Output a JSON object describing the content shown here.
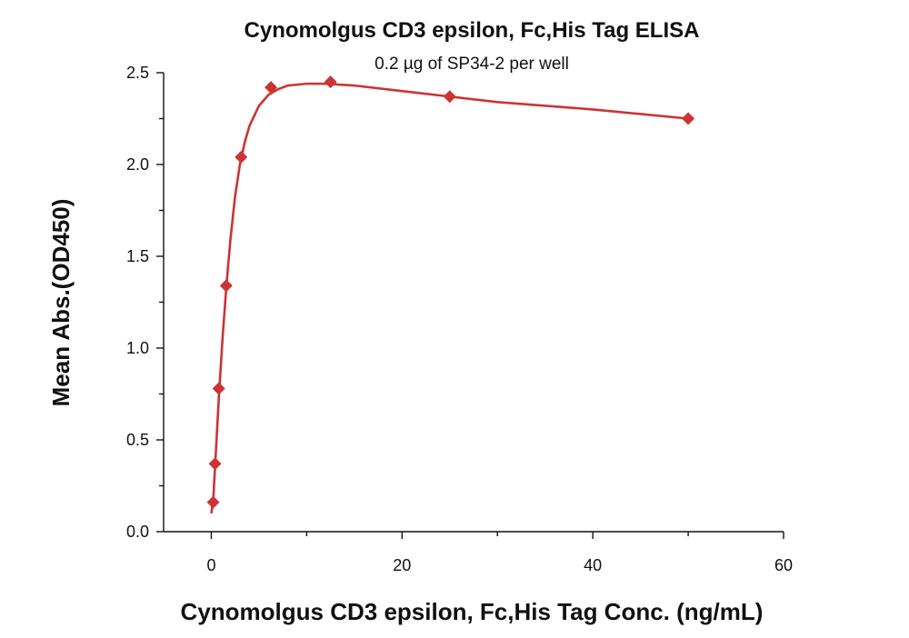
{
  "chart_data": {
    "type": "scatter",
    "title": "Cynomolgus CD3 epsilon, Fc,His Tag ELISA",
    "subtitle": "0.2 µg of SP34-2 per well",
    "xlabel": "Cynomolgus CD3 epsilon, Fc,His Tag Conc. (ng/mL)",
    "ylabel": "Mean Abs.(OD450)",
    "xlim": [
      -5,
      60
    ],
    "ylim": [
      0,
      2.5
    ],
    "x_ticks": [
      0,
      20,
      40,
      60
    ],
    "x_tick_labels": [
      "0",
      "20",
      "40",
      "60"
    ],
    "y_ticks": [
      0,
      0.5,
      1.0,
      1.5,
      2.0,
      2.5
    ],
    "y_tick_labels": [
      "0.0",
      "0.5",
      "1.0",
      "1.5",
      "2.0",
      "2.5"
    ],
    "grid": false,
    "color": "#cc3333",
    "marker": "diamond",
    "series": [
      {
        "x": [
          0.195,
          0.39,
          0.78,
          1.56,
          3.125,
          6.25,
          12.5,
          25,
          50
        ],
        "y": [
          0.16,
          0.37,
          0.78,
          1.34,
          2.04,
          2.42,
          2.45,
          2.37,
          2.25
        ]
      }
    ],
    "fit_curve": {
      "x": [
        0.0,
        0.2,
        0.4,
        0.8,
        1.2,
        1.6,
        2.0,
        2.5,
        3.0,
        3.5,
        4.0,
        5.0,
        6.0,
        7.0,
        8.0,
        10.0,
        12.0,
        15.0,
        20.0,
        25.0,
        30.0,
        40.0,
        50.0
      ],
      "y": [
        0.1,
        0.17,
        0.36,
        0.74,
        1.07,
        1.35,
        1.59,
        1.83,
        2.0,
        2.12,
        2.21,
        2.32,
        2.38,
        2.41,
        2.43,
        2.44,
        2.44,
        2.43,
        2.4,
        2.37,
        2.34,
        2.3,
        2.25
      ]
    }
  }
}
